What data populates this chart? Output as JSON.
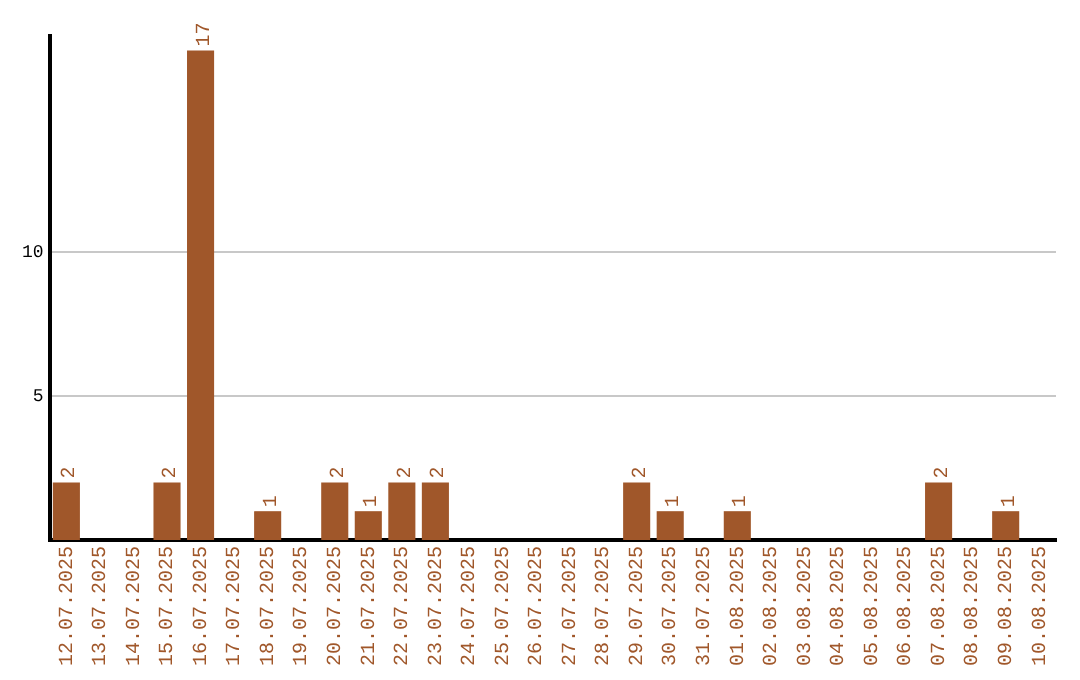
{
  "chart_data": {
    "type": "bar",
    "categories": [
      "12.07.2025",
      "13.07.2025",
      "14.07.2025",
      "15.07.2025",
      "16.07.2025",
      "17.07.2025",
      "18.07.2025",
      "19.07.2025",
      "20.07.2025",
      "21.07.2025",
      "22.07.2025",
      "23.07.2025",
      "24.07.2025",
      "25.07.2025",
      "26.07.2025",
      "27.07.2025",
      "28.07.2025",
      "29.07.2025",
      "30.07.2025",
      "31.07.2025",
      "01.08.2025",
      "02.08.2025",
      "03.08.2025",
      "04.08.2025",
      "05.08.2025",
      "06.08.2025",
      "07.08.2025",
      "08.08.2025",
      "09.08.2025",
      "10.08.2025"
    ],
    "values": [
      2,
      0,
      0,
      2,
      17,
      0,
      1,
      0,
      2,
      1,
      2,
      2,
      0,
      0,
      0,
      0,
      0,
      2,
      1,
      0,
      1,
      0,
      0,
      0,
      0,
      0,
      2,
      0,
      1,
      0
    ],
    "value_labels": [
      "2",
      null,
      null,
      "2",
      "17",
      null,
      "1",
      null,
      "2",
      "1",
      "2",
      "2",
      null,
      null,
      null,
      null,
      null,
      "2",
      "1",
      null,
      "1",
      null,
      null,
      null,
      null,
      null,
      "2",
      null,
      "1",
      null
    ],
    "color": "#a0572a",
    "ylim": [
      0,
      17.5
    ],
    "yticks": [
      5,
      10
    ],
    "grid": "y",
    "legend": false
  }
}
